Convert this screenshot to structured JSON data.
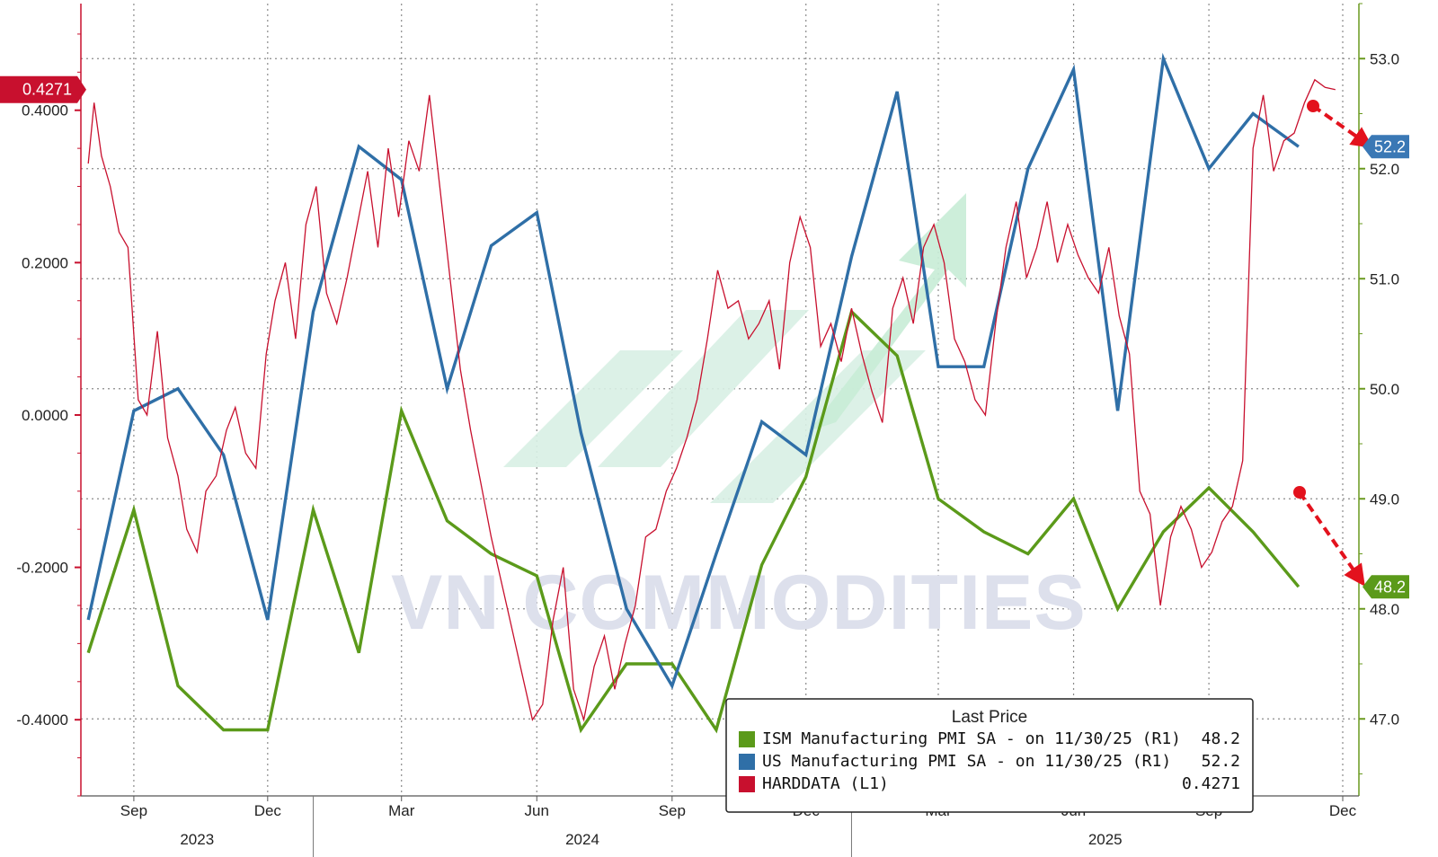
{
  "chart_data": {
    "type": "line",
    "title": "",
    "xlabel": "",
    "ylabel_left": "",
    "ylabel_right": "",
    "x_tick_labels": [
      "Sep",
      "Dec",
      "Mar",
      "Jun",
      "Sep",
      "Dec",
      "Mar",
      "Jun",
      "Sep",
      "Dec"
    ],
    "year_labels": [
      "2023",
      "2024",
      "2025"
    ],
    "left_axis": {
      "ylim": [
        -0.5,
        0.54
      ],
      "ticks": [
        "0.4000",
        "0.2000",
        "0.0000",
        "-0.2000",
        "-0.4000"
      ],
      "current_value_label": "0.4271",
      "color": "#c8102e"
    },
    "right_axis": {
      "ylim": [
        46.3,
        53.5
      ],
      "ticks": [
        "53.0",
        "52.0",
        "51.0",
        "50.0",
        "49.0",
        "48.0",
        "47.0"
      ],
      "color": "#6a9a1f"
    },
    "grid": true,
    "legend_position": "bottom-right",
    "legend": {
      "title": "Last Price",
      "entries": [
        {
          "label": "ISM Manufacturing PMI SA -   on 11/30/25  (R1)",
          "value": "48.2",
          "color": "#5b9a1a"
        },
        {
          "label": "US Manufacturing PMI SA -   on 11/30/25  (R1)",
          "value": "52.2",
          "color": "#2f6fa7"
        },
        {
          "label": "HARDDATA  (L1)",
          "value": "0.4271",
          "color": "#c8102e"
        }
      ]
    },
    "end_badges": [
      {
        "series": "US Manufacturing PMI SA",
        "text": "52.2",
        "color": "#3a78b5"
      },
      {
        "series": "ISM Manufacturing PMI SA",
        "text": "48.2",
        "color": "#5b9a1a"
      },
      {
        "series": "HARDDATA",
        "text": "0.4271",
        "color": "#c8102e"
      }
    ],
    "watermark": "VN COMMODITIES",
    "series": [
      {
        "name": "ISM Manufacturing PMI SA",
        "axis": "right",
        "color": "#5b9a1a",
        "x": [
          "2023-08",
          "2023-09",
          "2023-10",
          "2023-11",
          "2023-12",
          "2024-01",
          "2024-02",
          "2024-03",
          "2024-04",
          "2024-05",
          "2024-06",
          "2024-07",
          "2024-08",
          "2024-09",
          "2024-10",
          "2024-11",
          "2024-12",
          "2025-01",
          "2025-02",
          "2025-03",
          "2025-04",
          "2025-05",
          "2025-06",
          "2025-07",
          "2025-08",
          "2025-09",
          "2025-10",
          "2025-11"
        ],
        "y": [
          47.6,
          48.9,
          47.3,
          46.9,
          46.9,
          48.9,
          47.6,
          49.8,
          48.8,
          48.5,
          48.3,
          46.9,
          47.5,
          47.5,
          46.9,
          48.4,
          49.2,
          50.7,
          50.3,
          49.0,
          48.7,
          48.5,
          49.0,
          48.0,
          48.7,
          49.1,
          48.7,
          48.2
        ]
      },
      {
        "name": "US Manufacturing PMI SA",
        "axis": "right",
        "color": "#2f6fa7",
        "x": [
          "2023-08",
          "2023-09",
          "2023-10",
          "2023-11",
          "2023-12",
          "2024-01",
          "2024-02",
          "2024-03",
          "2024-04",
          "2024-05",
          "2024-06",
          "2024-07",
          "2024-08",
          "2024-09",
          "2024-10",
          "2024-11",
          "2024-12",
          "2025-01",
          "2025-02",
          "2025-03",
          "2025-04",
          "2025-05",
          "2025-06",
          "2025-07",
          "2025-08",
          "2025-09",
          "2025-10",
          "2025-11"
        ],
        "y": [
          47.9,
          49.8,
          50.0,
          49.4,
          47.9,
          50.7,
          52.2,
          51.9,
          50.0,
          51.3,
          51.6,
          49.6,
          48.0,
          47.3,
          48.5,
          49.7,
          49.4,
          51.2,
          52.7,
          50.2,
          50.2,
          52.0,
          52.9,
          49.8,
          53.0,
          52.0,
          52.5,
          52.2
        ]
      },
      {
        "name": "HARDDATA",
        "axis": "left",
        "color": "#c8102e",
        "x": [
          "2023-08-01",
          "2023-08-05",
          "2023-08-10",
          "2023-08-16",
          "2023-08-22",
          "2023-08-28",
          "2023-09-04",
          "2023-09-10",
          "2023-09-17",
          "2023-09-24",
          "2023-10-01",
          "2023-10-07",
          "2023-10-14",
          "2023-10-20",
          "2023-10-27",
          "2023-11-03",
          "2023-11-09",
          "2023-11-16",
          "2023-11-23",
          "2023-11-30",
          "2023-12-06",
          "2023-12-13",
          "2023-12-20",
          "2023-12-27",
          "2024-01-03",
          "2024-01-10",
          "2024-01-17",
          "2024-01-24",
          "2024-01-31",
          "2024-02-07",
          "2024-02-14",
          "2024-02-21",
          "2024-02-28",
          "2024-03-06",
          "2024-03-13",
          "2024-03-20",
          "2024-03-27",
          "2024-04-03",
          "2024-04-10",
          "2024-04-17",
          "2024-04-24",
          "2024-05-01",
          "2024-05-08",
          "2024-05-15",
          "2024-05-22",
          "2024-05-29",
          "2024-06-05",
          "2024-06-12",
          "2024-06-19",
          "2024-06-26",
          "2024-07-03",
          "2024-07-10",
          "2024-07-17",
          "2024-07-24",
          "2024-07-31",
          "2024-08-07",
          "2024-08-14",
          "2024-08-21",
          "2024-08-28",
          "2024-09-04",
          "2024-09-11",
          "2024-09-18",
          "2024-09-25",
          "2024-10-02",
          "2024-10-09",
          "2024-10-16",
          "2024-10-23",
          "2024-10-30",
          "2024-11-06",
          "2024-11-13",
          "2024-11-20",
          "2024-11-27",
          "2024-12-04",
          "2024-12-11",
          "2024-12-18",
          "2024-12-25",
          "2025-01-01",
          "2025-01-08",
          "2025-01-15",
          "2025-01-22",
          "2025-01-29",
          "2025-02-05",
          "2025-02-12",
          "2025-02-19",
          "2025-02-26",
          "2025-03-05",
          "2025-03-12",
          "2025-03-19",
          "2025-03-26",
          "2025-04-02",
          "2025-04-09",
          "2025-04-16",
          "2025-04-23",
          "2025-04-30",
          "2025-05-07",
          "2025-05-14",
          "2025-05-21",
          "2025-05-28",
          "2025-06-04",
          "2025-06-11",
          "2025-06-18",
          "2025-06-25",
          "2025-07-02",
          "2025-07-09",
          "2025-07-16",
          "2025-07-23",
          "2025-07-30",
          "2025-08-06",
          "2025-08-13",
          "2025-08-20",
          "2025-08-27",
          "2025-09-03",
          "2025-09-10",
          "2025-09-17",
          "2025-09-24",
          "2025-10-01",
          "2025-10-08",
          "2025-10-15",
          "2025-10-22",
          "2025-10-29",
          "2025-11-05",
          "2025-11-12",
          "2025-11-19",
          "2025-11-26"
        ],
        "y": [
          0.33,
          0.41,
          0.34,
          0.3,
          0.24,
          0.22,
          0.02,
          0.0,
          0.11,
          -0.03,
          -0.08,
          -0.15,
          -0.18,
          -0.1,
          -0.08,
          -0.02,
          0.01,
          -0.05,
          -0.07,
          0.08,
          0.15,
          0.2,
          0.1,
          0.25,
          0.3,
          0.16,
          0.12,
          0.18,
          0.25,
          0.32,
          0.22,
          0.35,
          0.26,
          0.36,
          0.32,
          0.42,
          0.3,
          0.18,
          0.06,
          -0.02,
          -0.09,
          -0.16,
          -0.22,
          -0.28,
          -0.34,
          -0.4,
          -0.38,
          -0.27,
          -0.2,
          -0.36,
          -0.4,
          -0.33,
          -0.29,
          -0.36,
          -0.3,
          -0.25,
          -0.16,
          -0.15,
          -0.1,
          -0.07,
          -0.03,
          0.02,
          0.1,
          0.19,
          0.14,
          0.15,
          0.1,
          0.12,
          0.15,
          0.06,
          0.2,
          0.26,
          0.22,
          0.09,
          0.12,
          0.07,
          0.14,
          0.08,
          0.03,
          -0.01,
          0.14,
          0.18,
          0.12,
          0.22,
          0.25,
          0.2,
          0.1,
          0.07,
          0.02,
          0.0,
          0.12,
          0.22,
          0.28,
          0.18,
          0.22,
          0.28,
          0.2,
          0.25,
          0.21,
          0.18,
          0.16,
          0.22,
          0.13,
          0.08,
          -0.1,
          -0.13,
          -0.25,
          -0.16,
          -0.12,
          -0.15,
          -0.2,
          -0.18,
          -0.14,
          -0.12,
          -0.06,
          0.35,
          0.42,
          0.32,
          0.36,
          0.37,
          0.41,
          0.44,
          0.43,
          0.4271
        ]
      }
    ]
  }
}
